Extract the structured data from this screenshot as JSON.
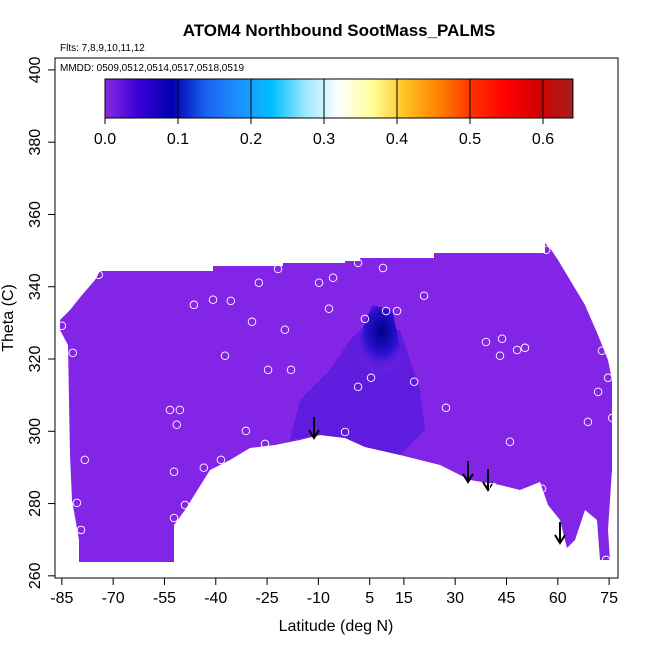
{
  "chart_data": {
    "type": "scatter",
    "title": "ATOM4 Northbound SootMass_PALMS",
    "flights": "Flts: 7,8,9,10,11,12",
    "dates": "MMDD: 0509,0512,0514,0517,0518,0519",
    "x_label": "Latitude (deg N)",
    "y_label": "Theta (C)",
    "xlim": [
      -87,
      77.6
    ],
    "ylim": [
      259.4,
      403.3
    ],
    "xticks": [
      -85,
      -70,
      -55,
      -40,
      -25,
      -10,
      5,
      15,
      30,
      45,
      60,
      75
    ],
    "yticks": [
      260,
      280,
      300,
      320,
      340,
      360,
      380,
      400
    ],
    "point_color": "#ffffff",
    "points": {
      "x": [
        -85,
        -81.8,
        -74.2,
        -78.3,
        -80.6,
        -79.4,
        -46.4,
        -40.8,
        -35.6,
        -27.4,
        -21.8,
        -29.4,
        -37.3,
        -24.7,
        -19.8,
        -18.0,
        -53.4,
        -50.5,
        -51.4,
        -52.2,
        -52.2,
        -49.0,
        -43.5,
        -38.5,
        -31.2,
        -25.6,
        -9.8,
        -6.9,
        -5.7,
        1.6,
        3.6,
        8.9,
        9.8,
        13.0,
        5.4,
        1.6,
        18.0,
        20.9,
        27.3,
        39.0,
        43.1,
        43.7,
        48.1,
        50.4,
        46.0,
        41.1,
        55.4,
        56.6,
        71.8,
        72.9,
        74.7,
        75.9,
        68.8,
        69.7,
        64.2,
        74.1,
        -2.2
      ],
      "y": [
        329.2,
        321.7,
        343.3,
        292.1,
        280.2,
        272.7,
        335.0,
        336.4,
        336.1,
        341.1,
        344.9,
        330.3,
        320.9,
        317.0,
        328.1,
        317.0,
        305.9,
        305.9,
        301.8,
        288.8,
        276.0,
        279.6,
        289.9,
        292.1,
        300.1,
        296.5,
        341.1,
        333.9,
        342.5,
        346.6,
        331.1,
        345.2,
        333.3,
        333.3,
        314.8,
        312.3,
        313.7,
        337.5,
        306.5,
        324.7,
        320.9,
        325.6,
        322.5,
        323.1,
        297.1,
        284.6,
        284.1,
        350.2,
        310.9,
        322.3,
        314.8,
        303.7,
        302.6,
        267.7,
        266.1,
        264.4,
        299.8
      ]
    },
    "colorbar": {
      "lim": [
        0,
        0.641
      ],
      "ticks": [
        {
          "value": 0,
          "label": "0.0"
        },
        0.1,
        0.2,
        0.3,
        0.4,
        0.5,
        0.6
      ],
      "colors": [
        "#8a2be2",
        "#3a00d8",
        "#0000b0",
        "#1a5ff0",
        "#1e90ff",
        "#00bfff",
        "#9ee8ff",
        "#ffffff",
        "#ffff99",
        "#ffc020",
        "#ff8000",
        "#ff3000",
        "#ff0000",
        "#d00000",
        "#a52020"
      ]
    }
  }
}
